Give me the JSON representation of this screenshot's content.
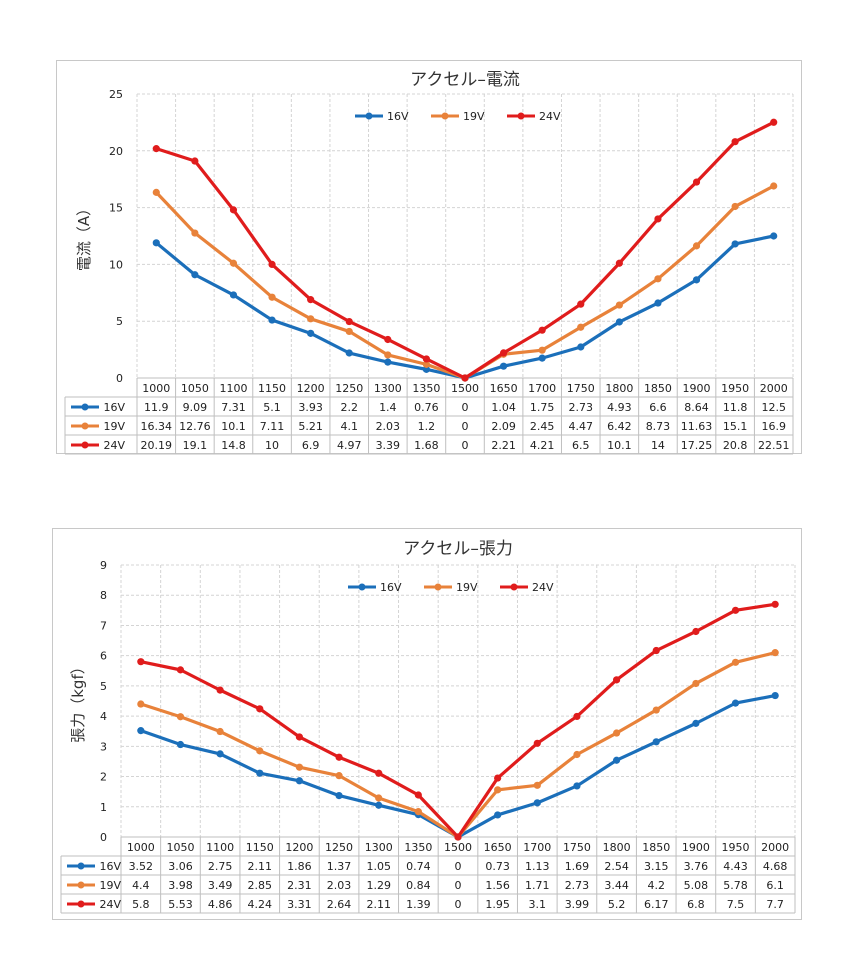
{
  "chart_data": [
    {
      "type": "line",
      "title": "アクセル–電流",
      "xlabel": "",
      "ylabel": "電流（A）",
      "ylim": [
        0,
        25
      ],
      "yticks": [
        0,
        5,
        10,
        15,
        20,
        25
      ],
      "grid": true,
      "legend": "top-center",
      "categories": [
        "1000",
        "1050",
        "1100",
        "1150",
        "1200",
        "1250",
        "1300",
        "1350",
        "1500",
        "1650",
        "1700",
        "1750",
        "1800",
        "1850",
        "1900",
        "1950",
        "2000"
      ],
      "series": [
        {
          "name": "16V",
          "color": "#1b6fba",
          "values": [
            11.9,
            9.09,
            7.31,
            5.1,
            3.93,
            2.2,
            1.4,
            0.76,
            0,
            1.04,
            1.75,
            2.73,
            4.93,
            6.6,
            8.64,
            11.8,
            12.5
          ],
          "labels": [
            "11.9",
            "9.09",
            "7.31",
            "5.1",
            "3.93",
            "2.2",
            "1.4",
            "0.76",
            "0",
            "1.04",
            "1.75",
            "2.73",
            "4.93",
            "6.6",
            "8.64",
            "11.8",
            "12.5"
          ]
        },
        {
          "name": "19V",
          "color": "#e8823a",
          "values": [
            16.34,
            12.76,
            10.1,
            7.11,
            5.21,
            4.1,
            2.03,
            1.2,
            0,
            2.09,
            2.45,
            4.47,
            6.42,
            8.73,
            11.63,
            15.1,
            16.9
          ],
          "labels": [
            "16.34",
            "12.76",
            "10.1",
            "7.11",
            "5.21",
            "4.1",
            "2.03",
            "1.2",
            "0",
            "2.09",
            "2.45",
            "4.47",
            "6.42",
            "8.73",
            "11.63",
            "15.1",
            "16.9"
          ]
        },
        {
          "name": "24V",
          "color": "#e01c1c",
          "values": [
            20.19,
            19.1,
            14.8,
            10,
            6.9,
            4.97,
            3.39,
            1.68,
            0,
            2.21,
            4.21,
            6.5,
            10.1,
            14,
            17.25,
            20.8,
            22.51
          ],
          "labels": [
            "20.19",
            "19.1",
            "14.8",
            "10",
            "6.9",
            "4.97",
            "3.39",
            "1.68",
            "0",
            "2.21",
            "4.21",
            "6.5",
            "10.1",
            "14",
            "17.25",
            "20.8",
            "22.51"
          ]
        }
      ]
    },
    {
      "type": "line",
      "title": "アクセル–張力",
      "xlabel": "",
      "ylabel": "張力（kgf）",
      "ylim": [
        0,
        9
      ],
      "yticks": [
        0,
        1,
        2,
        3,
        4,
        5,
        6,
        7,
        8,
        9
      ],
      "grid": true,
      "legend": "top-center",
      "categories": [
        "1000",
        "1050",
        "1100",
        "1150",
        "1200",
        "1250",
        "1300",
        "1350",
        "1500",
        "1650",
        "1700",
        "1750",
        "1800",
        "1850",
        "1900",
        "1950",
        "2000"
      ],
      "series": [
        {
          "name": "16V",
          "color": "#1b6fba",
          "values": [
            3.52,
            3.06,
            2.75,
            2.11,
            1.86,
            1.37,
            1.05,
            0.74,
            0,
            0.73,
            1.13,
            1.69,
            2.54,
            3.15,
            3.76,
            4.43,
            4.68
          ],
          "labels": [
            "3.52",
            "3.06",
            "2.75",
            "2.11",
            "1.86",
            "1.37",
            "1.05",
            "0.74",
            "0",
            "0.73",
            "1.13",
            "1.69",
            "2.54",
            "3.15",
            "3.76",
            "4.43",
            "4.68"
          ]
        },
        {
          "name": "19V",
          "color": "#e8823a",
          "values": [
            4.4,
            3.98,
            3.49,
            2.85,
            2.31,
            2.03,
            1.29,
            0.84,
            0,
            1.56,
            1.71,
            2.73,
            3.44,
            4.2,
            5.08,
            5.78,
            6.1
          ],
          "labels": [
            "4.4",
            "3.98",
            "3.49",
            "2.85",
            "2.31",
            "2.03",
            "1.29",
            "0.84",
            "0",
            "1.56",
            "1.71",
            "2.73",
            "3.44",
            "4.2",
            "5.08",
            "5.78",
            "6.1"
          ]
        },
        {
          "name": "24V",
          "color": "#e01c1c",
          "values": [
            5.8,
            5.53,
            4.86,
            4.24,
            3.31,
            2.64,
            2.11,
            1.39,
            0,
            1.95,
            3.1,
            3.99,
            5.2,
            6.17,
            6.8,
            7.5,
            7.7
          ],
          "labels": [
            "5.8",
            "5.53",
            "4.86",
            "4.24",
            "3.31",
            "2.64",
            "2.11",
            "1.39",
            "0",
            "1.95",
            "3.1",
            "3.99",
            "5.2",
            "6.17",
            "6.8",
            "7.5",
            "7.7"
          ]
        }
      ]
    }
  ]
}
